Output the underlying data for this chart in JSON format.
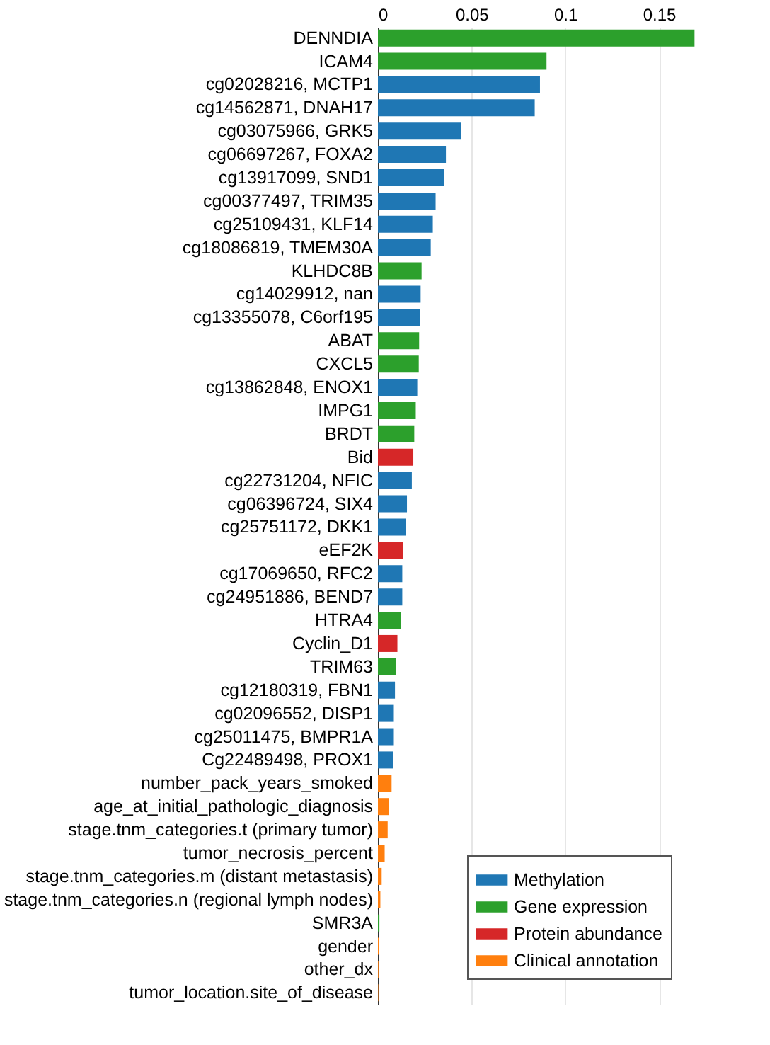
{
  "chart_data": {
    "type": "bar",
    "orientation": "horizontal",
    "legend": "bottom right",
    "grid": "x",
    "categories": [
      "DENNDIA",
      "ICAM4",
      "cg02028216, MCTP1",
      "cg14562871, DNAH17",
      "cg03075966, GRK5",
      "cg06697267, FOXA2",
      "cg13917099, SND1",
      "cg00377497, TRIM35",
      "cg25109431, KLF14",
      "cg18086819, TMEM30A",
      "KLHDC8B",
      "cg14029912, nan",
      "cg13355078, C6orf195",
      "ABAT",
      "CXCL5",
      "cg13862848, ENOX1",
      "IMPG1",
      "BRDT",
      "Bid",
      "cg22731204, NFIC",
      "cg06396724, SIX4",
      "cg25751172, DKK1",
      "eEF2K",
      "cg17069650, RFC2",
      "cg24951886, BEND7",
      "HTRA4",
      "Cyclin_D1",
      "TRIM63",
      "cg12180319, FBN1",
      "cg02096552, DISP1",
      "cg25011475, BMPR1A",
      "Cg22489498, PROX1",
      "number_pack_years_smoked",
      "age_at_initial_pathologic_diagnosis",
      "stage.tnm_categories.t (primary tumor)",
      "tumor_necrosis_percent",
      "stage.tnm_categories.m (distant metastasis)",
      "stage.tnm_categories.n (regional lymph nodes)",
      "SMR3A",
      "gender",
      "other_dx",
      "tumor_location.site_of_disease"
    ],
    "xlim": [
      0,
      0.17
    ],
    "xticks": [
      0,
      0.05,
      0.1,
      0.15
    ],
    "series": [
      {
        "name": "Methylation",
        "color": "#1f77b4",
        "values": [
          null,
          null,
          0.0865,
          0.0837,
          0.0443,
          0.0363,
          0.0355,
          0.0308,
          0.0293,
          0.0282,
          null,
          0.0228,
          0.0225,
          null,
          null,
          0.021,
          null,
          null,
          null,
          0.0181,
          0.0155,
          0.015,
          null,
          0.013,
          0.013,
          null,
          null,
          null,
          0.0091,
          0.0085,
          0.0085,
          0.008,
          null,
          null,
          null,
          null,
          null,
          null,
          null,
          null,
          null,
          null
        ]
      },
      {
        "name": "Gene expression",
        "color": "#2ca02c",
        "values": [
          0.169,
          0.09,
          null,
          null,
          null,
          null,
          null,
          null,
          null,
          null,
          0.0233,
          null,
          null,
          0.022,
          0.0218,
          null,
          0.0202,
          0.0194,
          null,
          null,
          null,
          null,
          null,
          null,
          null,
          0.0124,
          null,
          0.0096,
          null,
          null,
          null,
          null,
          null,
          null,
          null,
          null,
          null,
          null,
          0.0008,
          null,
          null,
          null
        ]
      },
      {
        "name": "Protein abundance",
        "color": "#d62728",
        "values": [
          null,
          null,
          null,
          null,
          null,
          null,
          null,
          null,
          null,
          null,
          null,
          null,
          null,
          null,
          null,
          null,
          null,
          null,
          0.0189,
          null,
          null,
          null,
          0.0135,
          null,
          null,
          null,
          0.0104,
          null,
          null,
          null,
          null,
          null,
          null,
          null,
          null,
          null,
          null,
          null,
          null,
          null,
          null,
          null
        ]
      },
      {
        "name": "Clinical annotation",
        "color": "#ff7f0e",
        "values": [
          null,
          null,
          null,
          null,
          null,
          null,
          null,
          null,
          null,
          null,
          null,
          null,
          null,
          null,
          null,
          null,
          null,
          null,
          null,
          null,
          null,
          null,
          null,
          null,
          null,
          null,
          null,
          null,
          null,
          null,
          null,
          null,
          0.0073,
          0.0057,
          0.0052,
          0.0036,
          0.002,
          0.0013,
          null,
          0.0005,
          0.0003,
          0.0002
        ]
      }
    ]
  }
}
